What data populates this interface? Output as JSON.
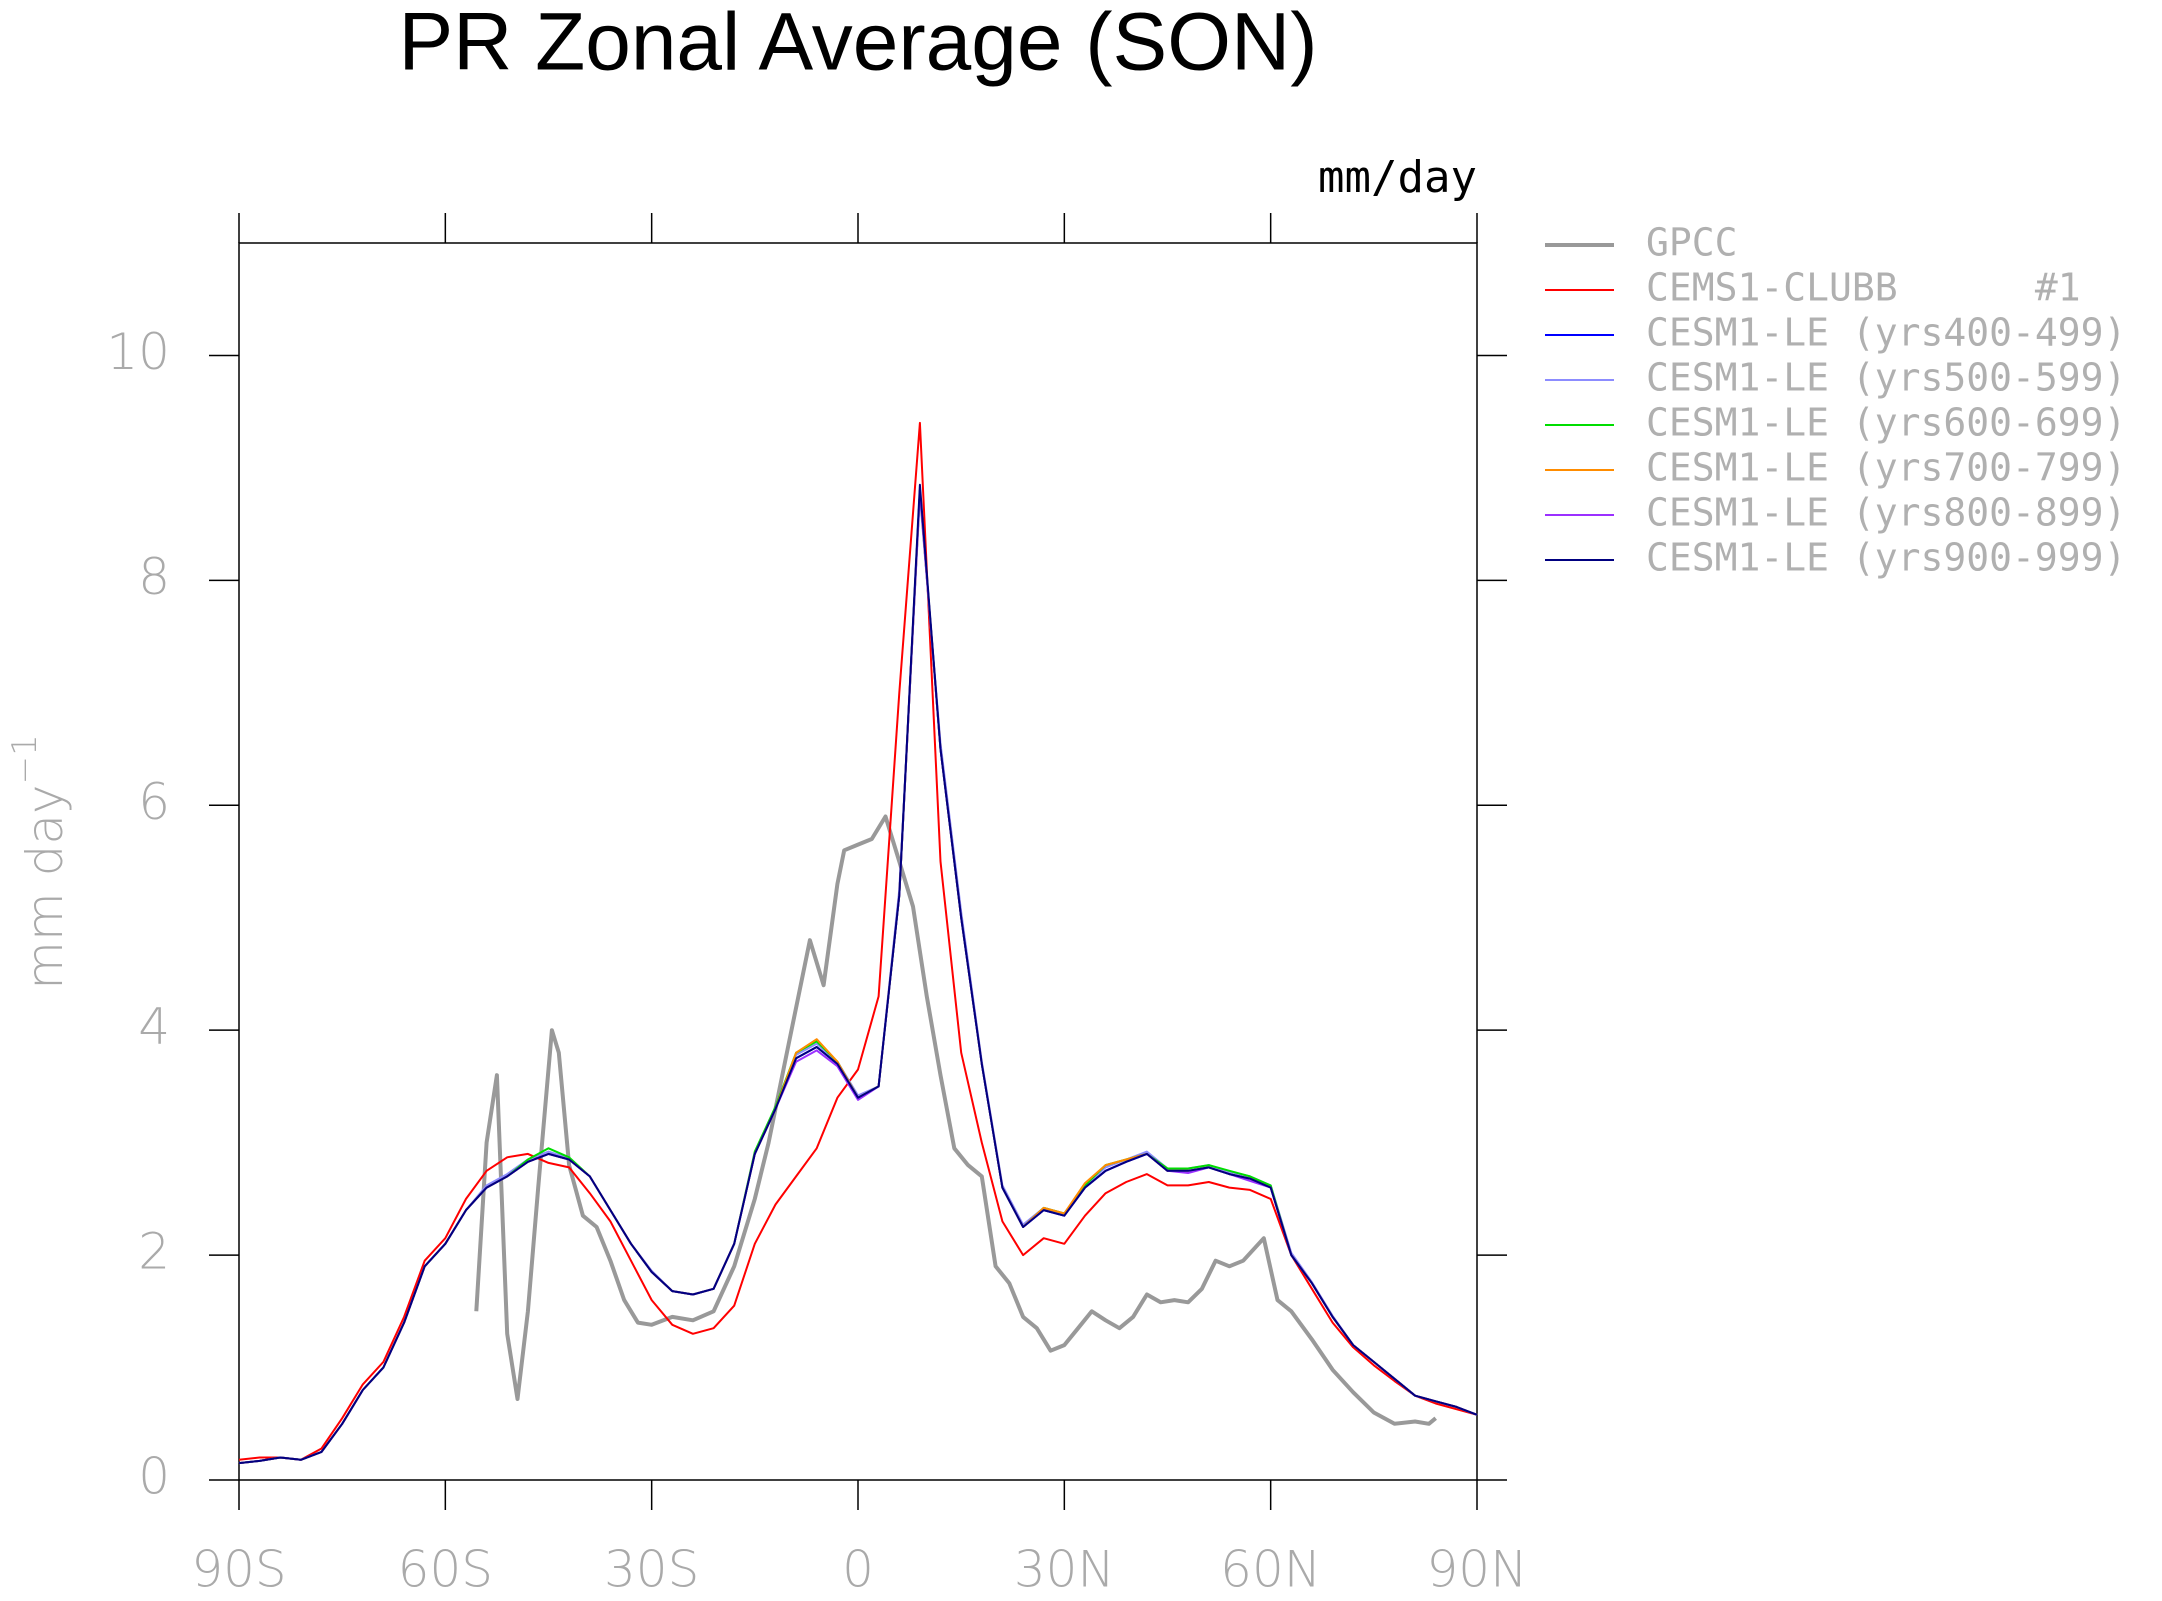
{
  "chart_data": {
    "type": "line",
    "title": "PR Zonal Average (SON)",
    "units": "mm/day",
    "y_label": "mm day",
    "y_label_superscript": "−1",
    "xlim": [
      -90,
      90
    ],
    "xticks": [
      {
        "value": -90,
        "label": "90S"
      },
      {
        "value": -60,
        "label": "60S"
      },
      {
        "value": -30,
        "label": "30S"
      },
      {
        "value": 0,
        "label": "0"
      },
      {
        "value": 30,
        "label": "30N"
      },
      {
        "value": 60,
        "label": "60N"
      },
      {
        "value": 90,
        "label": "90N"
      }
    ],
    "ylim": [
      0,
      11
    ],
    "yticks": [
      0,
      2,
      4,
      6,
      8,
      10
    ],
    "x": [
      -90,
      -87,
      -84,
      -81,
      -78,
      -75,
      -72,
      -69,
      -66,
      -63,
      -60,
      -57,
      -54,
      -51,
      -48,
      -45,
      -42,
      -39,
      -36,
      -33,
      -30,
      -27,
      -24,
      -21,
      -18,
      -15,
      -12,
      -9,
      -6,
      -3,
      0,
      3,
      6,
      9,
      12,
      15,
      18,
      21,
      24,
      27,
      30,
      33,
      36,
      39,
      42,
      45,
      48,
      51,
      54,
      57,
      60,
      63,
      66,
      69,
      72,
      75,
      78,
      81,
      84,
      87,
      90
    ],
    "series": [
      {
        "name": "GPCC",
        "color": "#999999",
        "width": 4,
        "x": [
          -55.5,
          -54,
          -52.5,
          -51,
          -49.5,
          -48,
          -46.5,
          -44.5,
          -43.5,
          -42,
          -40,
          -38,
          -36,
          -34,
          -32,
          -30,
          -27,
          -24,
          -21,
          -18,
          -15,
          -13,
          -10,
          -7,
          -5,
          -3,
          -2,
          0,
          2,
          4,
          6,
          8,
          10,
          12,
          14,
          16,
          18,
          20,
          22,
          24,
          26,
          28,
          30,
          32,
          34,
          36,
          38,
          40,
          42,
          44,
          46,
          48,
          50,
          52,
          54,
          56,
          59,
          61,
          63,
          66,
          69,
          72,
          75,
          78,
          81,
          83,
          84
        ],
        "values": [
          1.5,
          3.0,
          3.6,
          1.3,
          0.72,
          1.5,
          2.6,
          4.0,
          3.8,
          2.8,
          2.35,
          2.25,
          1.95,
          1.6,
          1.4,
          1.38,
          1.45,
          1.42,
          1.5,
          1.9,
          2.5,
          3.0,
          3.9,
          4.8,
          4.4,
          5.3,
          5.6,
          5.65,
          5.7,
          5.9,
          5.5,
          5.1,
          4.3,
          3.6,
          2.95,
          2.8,
          2.7,
          1.9,
          1.75,
          1.45,
          1.35,
          1.15,
          1.2,
          1.35,
          1.5,
          1.42,
          1.35,
          1.45,
          1.65,
          1.58,
          1.6,
          1.58,
          1.7,
          1.95,
          1.9,
          1.95,
          2.15,
          1.6,
          1.5,
          1.25,
          0.98,
          0.78,
          0.6,
          0.5,
          0.52,
          0.5,
          0.55
        ]
      },
      {
        "name": "CEMS1-CLUBB      #1",
        "color": "#ff0000",
        "width": 2,
        "values": [
          0.18,
          0.2,
          0.2,
          0.18,
          0.28,
          0.55,
          0.85,
          1.05,
          1.45,
          1.95,
          2.15,
          2.5,
          2.75,
          2.87,
          2.9,
          2.82,
          2.78,
          2.55,
          2.3,
          1.95,
          1.6,
          1.38,
          1.3,
          1.35,
          1.55,
          2.1,
          2.45,
          2.7,
          2.95,
          3.4,
          3.65,
          4.3,
          7.0,
          9.4,
          5.5,
          3.8,
          3.0,
          2.3,
          2.0,
          2.15,
          2.1,
          2.35,
          2.55,
          2.65,
          2.72,
          2.62,
          2.62,
          2.65,
          2.6,
          2.58,
          2.5,
          2.0,
          1.7,
          1.4,
          1.18,
          1.02,
          0.88,
          0.75,
          0.68,
          0.63,
          0.58
        ]
      },
      {
        "name": "CESM1-LE (yrs400-499)",
        "color": "#0000ff",
        "width": 2,
        "values": [
          0.15,
          0.17,
          0.2,
          0.18,
          0.25,
          0.5,
          0.8,
          1.0,
          1.4,
          1.9,
          2.1,
          2.4,
          2.6,
          2.7,
          2.83,
          2.9,
          2.85,
          2.7,
          2.4,
          2.1,
          1.85,
          1.68,
          1.65,
          1.7,
          2.1,
          2.9,
          3.3,
          3.75,
          3.85,
          3.7,
          3.4,
          3.5,
          5.2,
          8.8,
          6.5,
          5.0,
          3.7,
          2.6,
          2.25,
          2.4,
          2.35,
          2.6,
          2.75,
          2.83,
          2.9,
          2.75,
          2.75,
          2.78,
          2.72,
          2.68,
          2.6,
          2.0,
          1.75,
          1.45,
          1.2,
          1.05,
          0.9,
          0.75,
          0.7,
          0.65,
          0.58
        ]
      },
      {
        "name": "CESM1-LE (yrs500-599)",
        "color": "#8c8cff",
        "width": 2,
        "values": [
          0.15,
          0.17,
          0.2,
          0.18,
          0.25,
          0.5,
          0.8,
          1.0,
          1.4,
          1.9,
          2.1,
          2.4,
          2.62,
          2.72,
          2.85,
          2.92,
          2.86,
          2.7,
          2.4,
          2.1,
          1.86,
          1.68,
          1.65,
          1.7,
          2.1,
          2.9,
          3.32,
          3.78,
          3.88,
          3.72,
          3.42,
          3.5,
          5.25,
          8.75,
          6.55,
          5.05,
          3.72,
          2.62,
          2.27,
          2.42,
          2.37,
          2.62,
          2.78,
          2.85,
          2.92,
          2.77,
          2.77,
          2.8,
          2.74,
          2.7,
          2.62,
          2.02,
          1.76,
          1.46,
          1.2,
          1.05,
          0.9,
          0.75,
          0.7,
          0.65,
          0.58
        ]
      },
      {
        "name": "CESM1-LE (yrs600-699)",
        "color": "#00dd00",
        "width": 2,
        "values": [
          0.15,
          0.17,
          0.2,
          0.18,
          0.25,
          0.5,
          0.8,
          1.0,
          1.4,
          1.9,
          2.1,
          2.4,
          2.6,
          2.7,
          2.85,
          2.95,
          2.87,
          2.7,
          2.4,
          2.1,
          1.85,
          1.68,
          1.65,
          1.7,
          2.1,
          2.92,
          3.32,
          3.8,
          3.9,
          3.72,
          3.4,
          3.5,
          5.2,
          8.8,
          6.5,
          5.0,
          3.7,
          2.6,
          2.25,
          2.42,
          2.37,
          2.62,
          2.8,
          2.85,
          2.9,
          2.77,
          2.77,
          2.8,
          2.75,
          2.7,
          2.62,
          2.0,
          1.75,
          1.45,
          1.2,
          1.05,
          0.9,
          0.75,
          0.7,
          0.65,
          0.58
        ]
      },
      {
        "name": "CESM1-LE (yrs700-799)",
        "color": "#ff8c00",
        "width": 2,
        "values": [
          0.15,
          0.17,
          0.2,
          0.18,
          0.25,
          0.5,
          0.8,
          1.0,
          1.4,
          1.9,
          2.1,
          2.4,
          2.6,
          2.7,
          2.83,
          2.9,
          2.85,
          2.7,
          2.4,
          2.1,
          1.85,
          1.68,
          1.65,
          1.7,
          2.1,
          2.9,
          3.3,
          3.8,
          3.92,
          3.72,
          3.4,
          3.5,
          5.2,
          8.8,
          6.5,
          5.0,
          3.7,
          2.6,
          2.25,
          2.42,
          2.37,
          2.64,
          2.8,
          2.85,
          2.9,
          2.75,
          2.75,
          2.78,
          2.72,
          2.68,
          2.6,
          2.0,
          1.75,
          1.45,
          1.2,
          1.05,
          0.9,
          0.75,
          0.7,
          0.65,
          0.58
        ]
      },
      {
        "name": "CESM1-LE (yrs800-899)",
        "color": "#9b30ff",
        "width": 2,
        "values": [
          0.15,
          0.17,
          0.2,
          0.18,
          0.25,
          0.5,
          0.8,
          1.0,
          1.4,
          1.9,
          2.1,
          2.4,
          2.6,
          2.7,
          2.83,
          2.9,
          2.85,
          2.7,
          2.4,
          2.1,
          1.85,
          1.68,
          1.65,
          1.7,
          2.1,
          2.9,
          3.3,
          3.72,
          3.82,
          3.68,
          3.38,
          3.5,
          5.2,
          8.8,
          6.5,
          5.0,
          3.7,
          2.6,
          2.25,
          2.4,
          2.35,
          2.6,
          2.75,
          2.83,
          2.9,
          2.75,
          2.73,
          2.78,
          2.72,
          2.66,
          2.6,
          2.0,
          1.75,
          1.45,
          1.2,
          1.05,
          0.9,
          0.75,
          0.7,
          0.65,
          0.58
        ]
      },
      {
        "name": "CESM1-LE (yrs900-999)",
        "color": "#000080",
        "width": 2,
        "values": [
          0.15,
          0.17,
          0.2,
          0.18,
          0.25,
          0.5,
          0.8,
          1.0,
          1.4,
          1.9,
          2.1,
          2.4,
          2.6,
          2.7,
          2.83,
          2.9,
          2.85,
          2.7,
          2.4,
          2.1,
          1.85,
          1.68,
          1.65,
          1.7,
          2.1,
          2.9,
          3.3,
          3.75,
          3.85,
          3.7,
          3.4,
          3.5,
          5.2,
          8.85,
          6.5,
          5.0,
          3.7,
          2.6,
          2.25,
          2.4,
          2.35,
          2.6,
          2.75,
          2.83,
          2.9,
          2.75,
          2.75,
          2.78,
          2.72,
          2.68,
          2.6,
          2.0,
          1.75,
          1.45,
          1.2,
          1.05,
          0.9,
          0.75,
          0.7,
          0.65,
          0.58
        ]
      }
    ],
    "legend": "right"
  }
}
